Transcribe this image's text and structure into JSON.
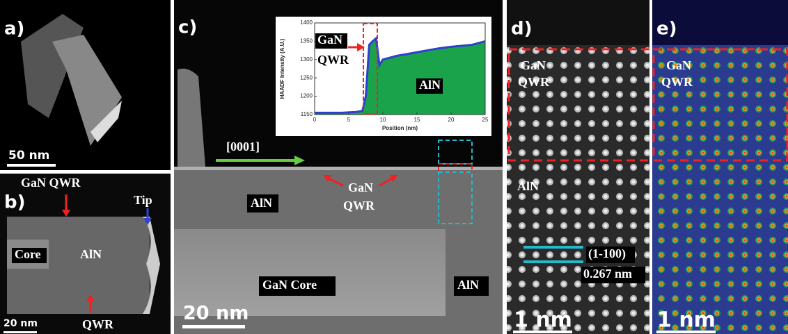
{
  "panels": {
    "a": {
      "label": "a)",
      "scale": "50 nm"
    },
    "b": {
      "label": "b)",
      "gan_qwr": "GaN QWR",
      "tip": "Tip",
      "core": "Core",
      "aln": "AlN",
      "scale": "20 nm",
      "qwr": "QWR"
    },
    "c": {
      "label": "c)",
      "direction": "[0001]",
      "aln_top": "AlN",
      "gan": "GaN",
      "qwr": "QWR",
      "core": "GaN Core",
      "aln_right": "AlN",
      "scale": "20 nm"
    },
    "d": {
      "label": "d)",
      "gan": "GaN",
      "qwr": "QWR",
      "aln": "AlN",
      "plane": "(1-100)",
      "spacing": "0.267 nm",
      "scale": "1 nm"
    },
    "e": {
      "label": "e)",
      "gan": "GaN",
      "qwr": "QWR",
      "scale": "1 nm"
    }
  },
  "inset_chart": {
    "type": "area",
    "xlabel": "Position (nm)",
    "ylabel": "HAADF Intensity (A.U.)",
    "xlim": [
      0,
      25
    ],
    "ylim": [
      1150,
      1400
    ],
    "xticks": [
      0,
      5,
      10,
      15,
      20,
      25
    ],
    "yticks": [
      1150,
      1200,
      1250,
      1300,
      1350,
      1400
    ],
    "x": [
      0,
      2,
      4,
      6,
      7,
      7.5,
      8,
      8.5,
      9,
      9.5,
      10,
      12,
      15,
      18,
      20,
      23,
      25
    ],
    "values": [
      1155,
      1155,
      1155,
      1157,
      1160,
      1200,
      1340,
      1350,
      1358,
      1285,
      1300,
      1310,
      1320,
      1330,
      1335,
      1340,
      1350
    ],
    "fill": "#1aa34a",
    "line": "#2f3fd0",
    "gan": "GaN",
    "qwr": "QWR",
    "aln": "AlN"
  }
}
